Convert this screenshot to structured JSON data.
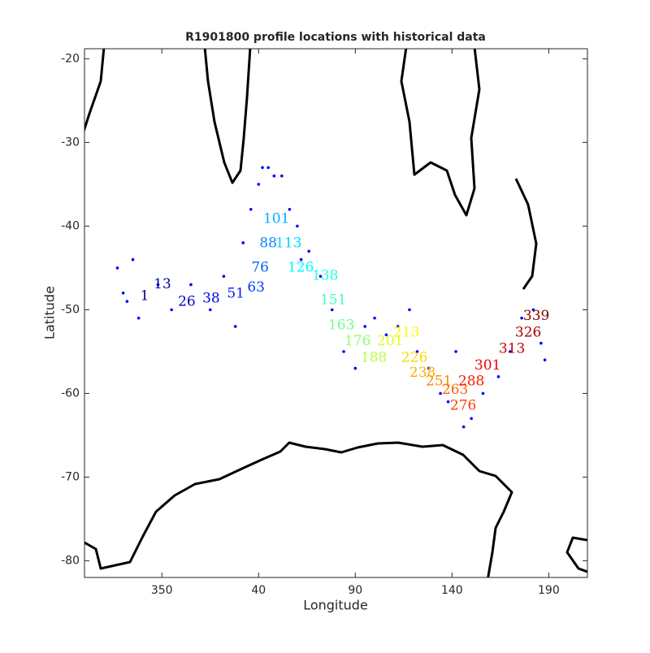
{
  "chart_data": {
    "type": "map_scatter",
    "title": "R1901800 profile locations with historical data",
    "xlabel": "Longitude",
    "ylabel": "Latitude",
    "xlim": [
      -50,
      210
    ],
    "ylim": [
      -82,
      -18.8
    ],
    "xticks": [
      {
        "value": -10,
        "label": "350"
      },
      40,
      90,
      140,
      190
    ],
    "yticks": [
      -20,
      -30,
      -40,
      -50,
      -60,
      -70,
      -80
    ],
    "historical": {
      "color": "#0000ff",
      "x": [
        -33,
        -30,
        -28,
        -25,
        -22,
        -12,
        -5,
        5,
        15,
        22,
        28,
        32,
        36,
        40,
        42,
        45,
        48,
        52,
        56,
        60,
        62,
        66,
        72,
        78,
        84,
        90,
        95,
        100,
        106,
        112,
        118,
        122,
        128,
        134,
        138,
        142,
        146,
        150,
        156,
        164,
        170,
        176,
        182,
        186,
        188
      ],
      "y": [
        -45,
        -48,
        -49,
        -44,
        -51,
        -47,
        -50,
        -47,
        -50,
        -46,
        -52,
        -42,
        -38,
        -35,
        -33,
        -33,
        -34,
        -34,
        -38,
        -40,
        -44,
        -43,
        -46,
        -50,
        -55,
        -57,
        -52,
        -51,
        -53,
        -52,
        -50,
        -55,
        -57,
        -60,
        -61,
        -55,
        -64,
        -63,
        -60,
        -58,
        -55,
        -51,
        -50,
        -54,
        -56
      ]
    },
    "profiles": {
      "colormap": "jet",
      "x": [
        -18.9,
        -9.7,
        2.9,
        15.5,
        28.2,
        38.7,
        40.8,
        45,
        49.2,
        55.5,
        61.8,
        74.4,
        78.6,
        82.8,
        91.2,
        99.6,
        108,
        116.4,
        120.6,
        124.8,
        133.2,
        141.6,
        145.8,
        150,
        158.4,
        171,
        179.4,
        183.6
      ],
      "y": [
        -48.4,
        -47.0,
        -49.1,
        -48.7,
        -48.1,
        -47.4,
        -45.0,
        -42.1,
        -39.2,
        -42.1,
        -45.0,
        -46.0,
        -48.9,
        -51.9,
        -53.8,
        -55.8,
        -53.8,
        -52.8,
        -55.8,
        -57.6,
        -58.6,
        -59.6,
        -61.5,
        -58.6,
        -56.7,
        -54.7,
        -52.8,
        -50.8
      ],
      "labels": [
        1,
        13,
        26,
        38,
        51,
        63,
        76,
        88,
        101,
        113,
        126,
        138,
        151,
        163,
        176,
        188,
        201,
        213,
        226,
        238,
        251,
        263,
        276,
        288,
        301,
        313,
        326,
        339
      ]
    }
  }
}
